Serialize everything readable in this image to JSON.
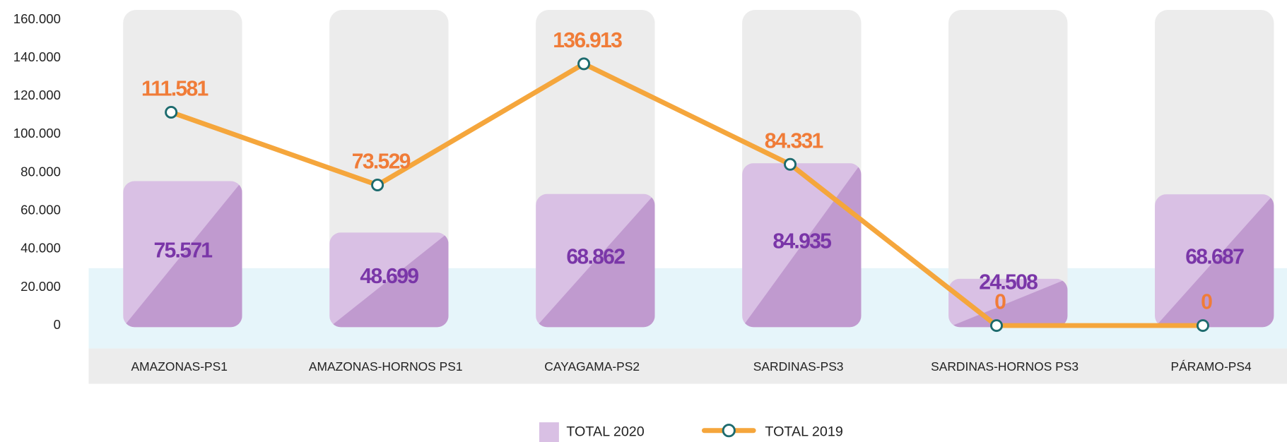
{
  "chart_data": {
    "type": "bar",
    "categories": [
      "AMAZONAS-PS1",
      "AMAZONAS-HORNOS PS1",
      "CAYAGAMA-PS2",
      "SARDINAS-PS3",
      "SARDINAS-HORNOS PS3",
      "PÁRAMO-PS4"
    ],
    "series": [
      {
        "name": "TOTAL 2020",
        "type": "bar",
        "color": "#d9c0e4",
        "values": [
          75571,
          48699,
          68862,
          84935,
          24508,
          68687
        ],
        "value_labels": [
          "75.571",
          "48.699",
          "68.862",
          "84.935",
          "24.508",
          "68.687"
        ]
      },
      {
        "name": "TOTAL 2019",
        "type": "line",
        "color": "#f5a63c",
        "values": [
          111581,
          73529,
          136913,
          84331,
          0,
          0
        ],
        "value_labels": [
          "111.581",
          "73.529",
          "136.913",
          "84.331",
          "0",
          "0"
        ]
      }
    ],
    "ylim": [
      0,
      160000
    ],
    "yticks": [
      0,
      {
        "value": 20000,
        "label": "20.000"
      },
      {
        "value": 40000,
        "label": "40.000"
      },
      {
        "value": 60000,
        "label": "60.000"
      },
      {
        "value": 80000,
        "label": "80.000"
      },
      {
        "value": 100000,
        "label": "100.000"
      },
      {
        "value": 120000,
        "label": "120.000"
      },
      {
        "value": 140000,
        "label": "140.000"
      },
      {
        "value": 160000,
        "label": "160.000"
      }
    ],
    "legend": "bottom"
  }
}
